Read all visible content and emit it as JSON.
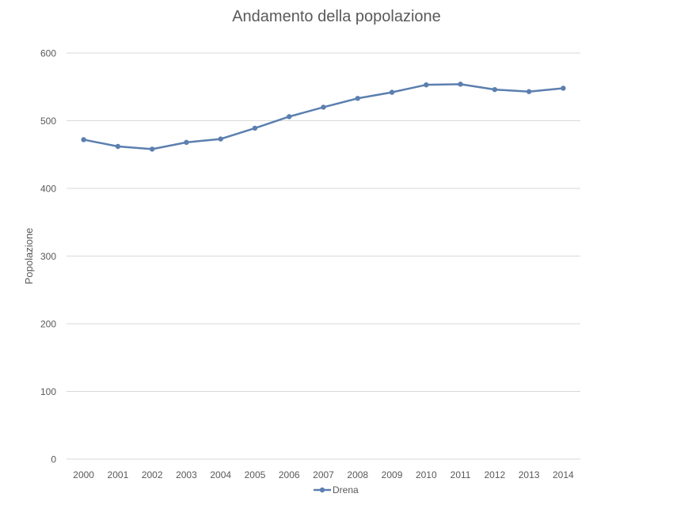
{
  "chart_data": {
    "type": "line",
    "title": "Andamento della popolazione",
    "xlabel": "",
    "ylabel": "Popolazione",
    "x": [
      "2000",
      "2001",
      "2002",
      "2003",
      "2004",
      "2005",
      "2006",
      "2007",
      "2008",
      "2009",
      "2010",
      "2011",
      "2012",
      "2013",
      "2014"
    ],
    "series": [
      {
        "name": "Drena",
        "values": [
          472,
          462,
          458,
          468,
          473,
          489,
          506,
          520,
          533,
          542,
          553,
          554,
          546,
          543,
          548
        ]
      }
    ],
    "ylim": [
      0,
      600
    ],
    "yticks": [
      0,
      100,
      200,
      300,
      400,
      500,
      600
    ],
    "grid": true,
    "legend_position": "bottom",
    "colors": {
      "series": "#5b7faf",
      "grid": "#d9d9d9",
      "text": "#595959"
    }
  }
}
